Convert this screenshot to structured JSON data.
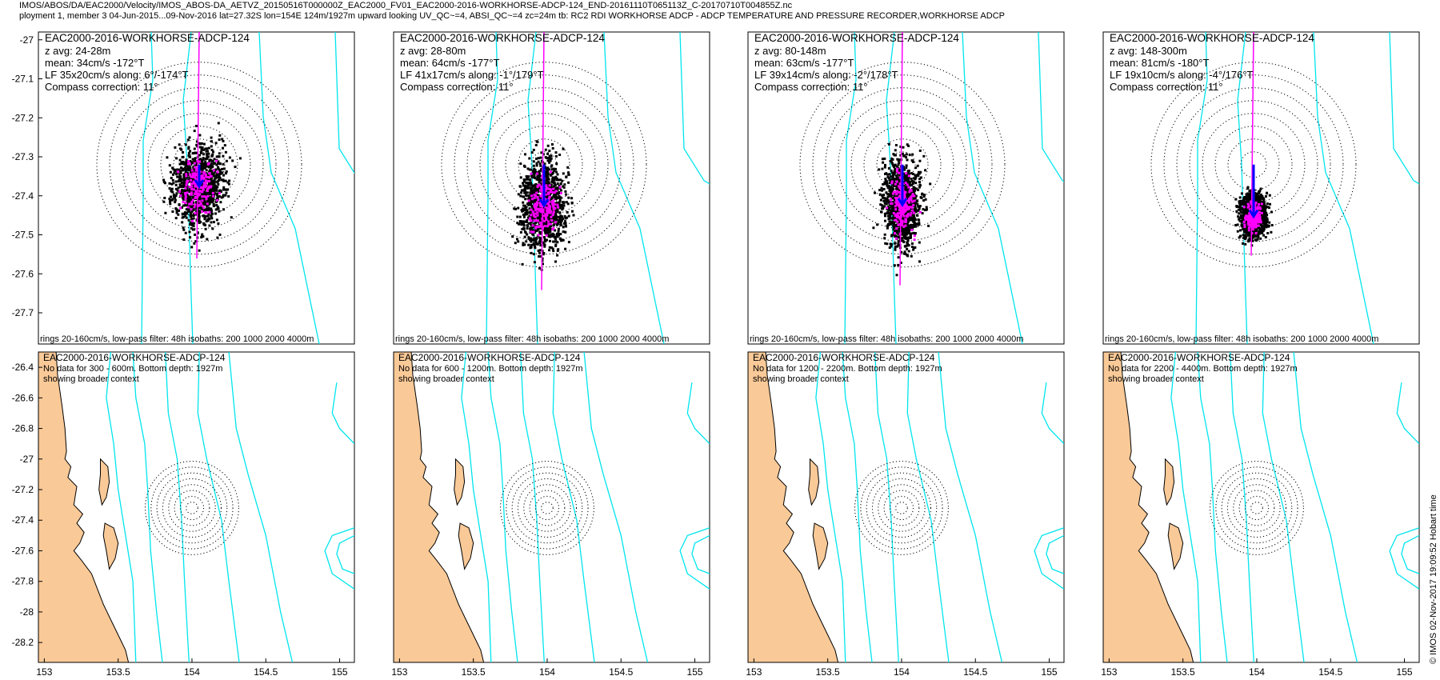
{
  "header": {
    "line1": "IMOS/ABOS/DA/EAC2000/Velocity/IMOS_ABOS-DA_AETVZ_20150516T000000Z_EAC2000_FV01_EAC2000-2016-WORKHORSE-ADCP-124_END-20161110T065113Z_C-20170710T004855Z.nc",
    "line2": "ployment 1, member 3 04-Jun-2015...09-Nov-2016 lat=27.32S lon=154E 124m/1927m upward looking UV_QC~=4, ABSI_QC~=4 zc=24m tb: RC2 RDI WORKHORSE ADCP - ADCP TEMPERATURE AND PRESSURE RECORDER,WORKHORSE ADCP"
  },
  "copyright": "© IMOS 02-Nov-2017 19:09:52 Hobart time",
  "colors": {
    "scatter": "#000000",
    "lowpass": "#ff00ff",
    "isobath": "#00e5ee",
    "mean_arrow": "#0000ff",
    "land": "#f9c997",
    "rings": "#000000"
  },
  "chart_data": [
    {
      "type": "scatter",
      "panel": "top-1",
      "title": "EAC2000-2016-WORKHORSE-ADCP-124",
      "info": [
        "z avg: 24-28m",
        "mean: 34cm/s -172°T",
        "LF 35x20cm/s along: 6°/-174°T",
        "Compass correction: 11°"
      ],
      "footer": "rings 20-160cm/s, low-pass filter: 48h isobaths: 200 1000 2000 4000m",
      "ylim": [
        -27.78,
        -26.98
      ],
      "yticks": [
        -27,
        -27.1,
        -27.2,
        -27.3,
        -27.4,
        -27.5,
        -27.6,
        -27.7
      ],
      "yticklabels": [
        "-27",
        "-27.1",
        "-27.2",
        "-27.3",
        "-27.4",
        "-27.5",
        "-27.6",
        "-27.7"
      ],
      "mean_speed_cms": 34,
      "mean_dir_degT": -172,
      "lf_major_cms": 35,
      "lf_minor_cms": 20,
      "rings_cms": [
        20,
        40,
        60,
        80,
        100,
        120,
        140,
        160
      ]
    },
    {
      "type": "scatter",
      "panel": "top-2",
      "title": "EAC2000-2016-WORKHORSE-ADCP-124",
      "info": [
        "z avg: 28-80m",
        "mean: 64cm/s -177°T",
        "LF 41x17cm/s along: -1°/179°T",
        "Compass correction: 11°"
      ],
      "footer": "rings 20-160cm/s, low-pass filter: 48h isobaths: 200 1000 2000 4000m",
      "mean_speed_cms": 64,
      "mean_dir_degT": -177,
      "lf_major_cms": 41,
      "lf_minor_cms": 17
    },
    {
      "type": "scatter",
      "panel": "top-3",
      "title": "EAC2000-2016-WORKHORSE-ADCP-124",
      "info": [
        "z avg: 80-148m",
        "mean: 63cm/s -177°T",
        "LF 39x14cm/s along: -2°/178°T",
        "Compass correction: 11°"
      ],
      "footer": "rings 20-160cm/s, low-pass filter: 48h isobaths: 200 1000 2000 4000m",
      "mean_speed_cms": 63,
      "mean_dir_degT": -177,
      "lf_major_cms": 39,
      "lf_minor_cms": 14
    },
    {
      "type": "scatter",
      "panel": "top-4",
      "title": "EAC2000-2016-WORKHORSE-ADCP-124",
      "info": [
        "z avg: 148-300m",
        "mean: 81cm/s -180°T",
        "LF 19x10cm/s along: -4°/176°T",
        "Compass correction: 11°"
      ],
      "footer": "rings 20-160cm/s, low-pass filter: 48h isobaths: 200 1000 2000 4000m",
      "mean_speed_cms": 81,
      "mean_dir_degT": -180,
      "lf_major_cms": 19,
      "lf_minor_cms": 10
    },
    {
      "type": "map",
      "panel": "bottom-1",
      "title": "EAC2000-2016-WORKHORSE-ADCP-124",
      "info": [
        "No data for 300 - 600m. Bottom depth: 1927m",
        "showing broader context"
      ],
      "xlim": [
        152.96,
        155.1
      ],
      "ylim": [
        -28.33,
        -26.3
      ],
      "xticks": [
        153,
        153.5,
        154,
        154.5,
        155
      ],
      "xticklabels": [
        "153",
        "153.5",
        "154",
        "154.5",
        "155"
      ],
      "yticks": [
        -26.4,
        -26.6,
        -26.8,
        -27,
        -27.2,
        -27.4,
        -27.6,
        -27.8,
        -28,
        -28.2
      ],
      "yticklabels": [
        "-26.4",
        "-26.6",
        "-26.8",
        "-27",
        "-27.2",
        "-27.4",
        "-27.6",
        "-27.8",
        "-28",
        "-28.2"
      ],
      "mooring": {
        "lon": 154.0,
        "lat": -27.32
      }
    },
    {
      "type": "map",
      "panel": "bottom-2",
      "title": "EAC2000-2016-WORKHORSE-ADCP-124",
      "info": [
        "No data for 600 - 1200m. Bottom depth: 1927m",
        "showing broader context"
      ]
    },
    {
      "type": "map",
      "panel": "bottom-3",
      "title": "EAC2000-2016-WORKHORSE-ADCP-124",
      "info": [
        "No data for 1200 - 2200m. Bottom depth: 1927m",
        "showing broader context"
      ]
    },
    {
      "type": "map",
      "panel": "bottom-4",
      "title": "EAC2000-2016-WORKHORSE-ADCP-124",
      "info": [
        "No data for 2200 - 4400m. Bottom depth: 1927m",
        "showing broader context"
      ]
    }
  ]
}
